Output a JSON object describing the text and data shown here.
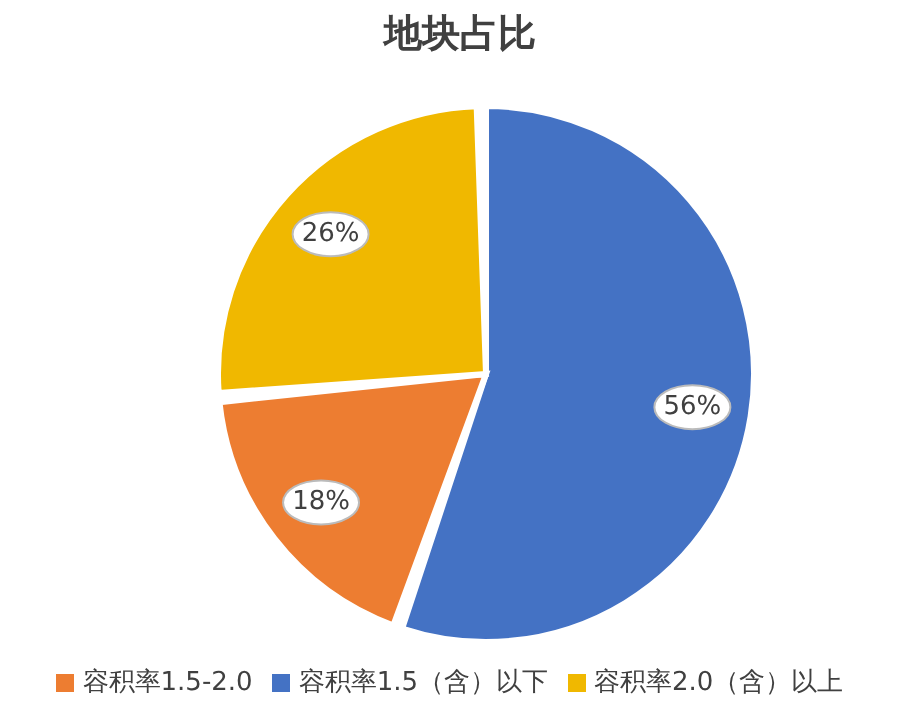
{
  "chart_data": {
    "type": "pie",
    "title": "地块占比",
    "categories": [
      "容积率1.5（含）以下",
      "容积率1.5-2.0",
      "容积率2.0（含）以上"
    ],
    "values": [
      56,
      18,
      26
    ],
    "colors": [
      "#4472c4",
      "#ed7d31",
      "#f0b800"
    ],
    "value_labels": [
      "56%",
      "18%",
      "26%"
    ],
    "legend": "bottom"
  }
}
